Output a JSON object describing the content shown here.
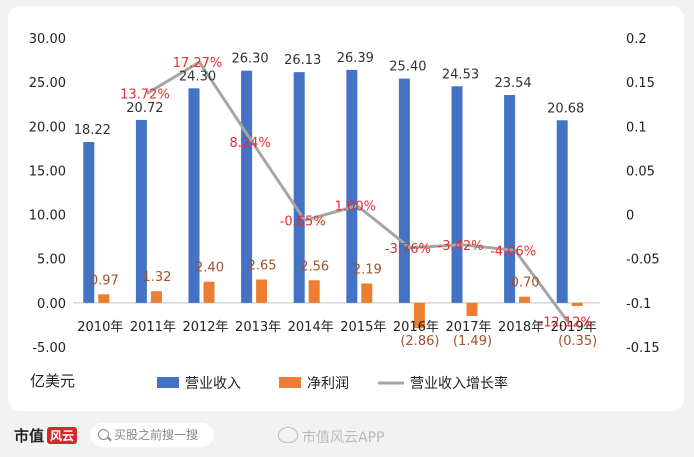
{
  "chart_data": {
    "type": "bar",
    "categories": [
      "2010年",
      "2011年",
      "2012年",
      "2013年",
      "2014年",
      "2015年",
      "2016年",
      "2017年",
      "2018年",
      "2019年"
    ],
    "unit_label": "亿美元",
    "left_axis": {
      "min": -5,
      "max": 30,
      "ticks": [
        "-5.00",
        "0.00",
        "5.00",
        "10.00",
        "15.00",
        "20.00",
        "25.00",
        "30.00"
      ]
    },
    "right_axis": {
      "min": -0.15,
      "max": 0.2,
      "ticks": [
        "-0.15",
        "-0.1",
        "-0.05",
        "0",
        "0.05",
        "0.1",
        "0.15",
        "0.2"
      ]
    },
    "series": [
      {
        "name": "营业收入",
        "color": "#4472c4",
        "values": [
          18.22,
          20.72,
          24.3,
          26.3,
          26.13,
          26.39,
          25.4,
          24.53,
          23.54,
          20.68
        ],
        "labels": [
          "18.22",
          "20.72",
          "24.30",
          "26.30",
          "26.13",
          "26.39",
          "25.40",
          "24.53",
          "23.54",
          "20.68"
        ]
      },
      {
        "name": "净利润",
        "color": "#ed7d31",
        "values": [
          0.97,
          1.32,
          2.4,
          2.65,
          2.56,
          2.19,
          -2.86,
          -1.49,
          0.7,
          -0.35
        ],
        "labels": [
          "0.97",
          "1.32",
          "2.40",
          "2.65",
          "2.56",
          "2.19",
          "(2.86)",
          "(1.49)",
          "0.70",
          "(0.35)"
        ]
      },
      {
        "name": "营业收入增长率",
        "color": "#a5a5a5",
        "values": [
          null,
          0.1372,
          0.1727,
          0.0824,
          -0.0065,
          0.01,
          -0.0376,
          -0.0342,
          -0.0406,
          -0.1212
        ],
        "labels": [
          "",
          "13.72%",
          "17.27%",
          "8.24%",
          "-0.65%",
          "1.00%",
          "-3.76%",
          "-3.42%",
          "-4.06%",
          "-12.12%"
        ]
      }
    ],
    "legend_position": "bottom",
    "grid": false
  },
  "footer": {
    "brand_name": "市值",
    "brand_badge": "风云",
    "search_placeholder": "买股之前搜一搜",
    "weibo_text": "市值风云APP"
  }
}
